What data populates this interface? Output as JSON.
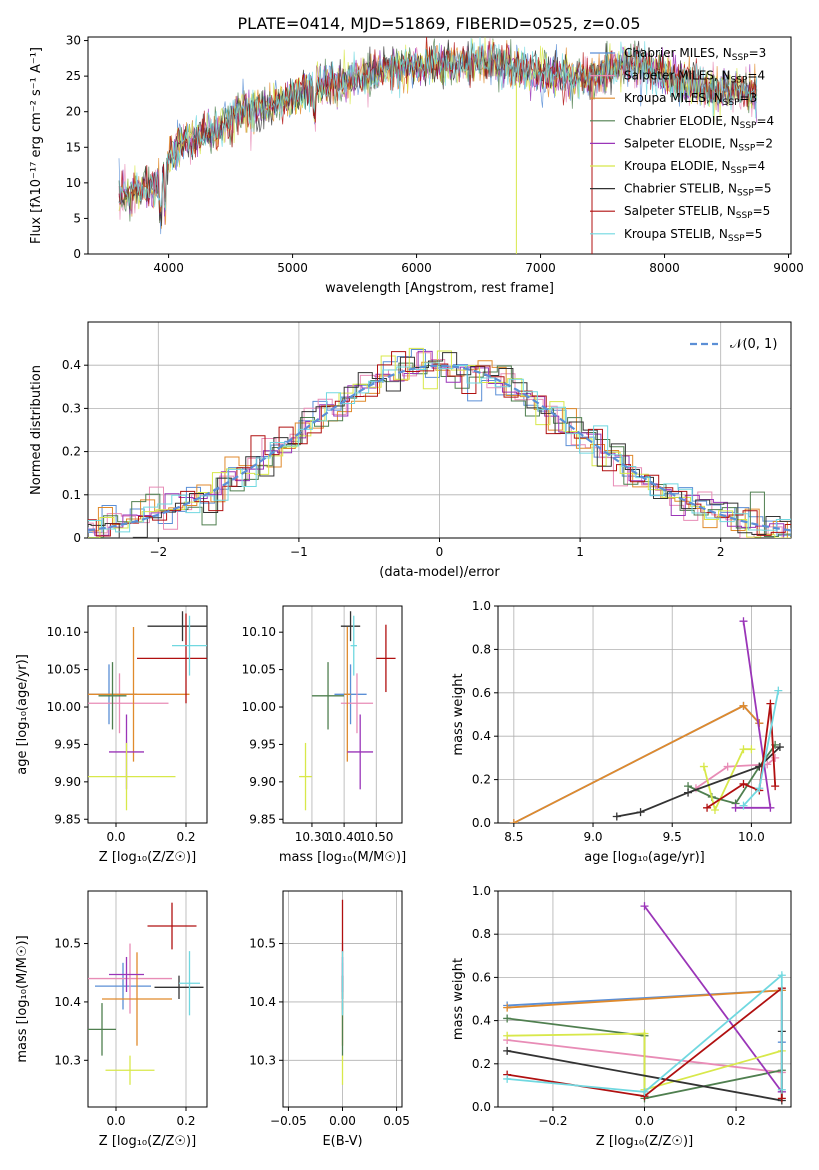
{
  "figure": {
    "title": "PLATE=0414, MJD=51869, FIBERID=0525, z=0.05"
  },
  "colors": {
    "Chabrier MILES": "#5b8fd6",
    "Salpeter MILES": "#e88cb6",
    "Kroupa MILES": "#e08a2c",
    "Chabrier ELODIE": "#4f7f4f",
    "Salpeter ELODIE": "#9a35b8",
    "Kroupa ELODIE": "#d8e84a",
    "Chabrier STELIB": "#333333",
    "Salpeter STELIB": "#b01010",
    "Kroupa STELIB": "#70d8e0"
  },
  "chart_data": [
    {
      "type": "line",
      "id": "spectrum",
      "title": "PLATE=0414, MJD=51869, FIBERID=0525, z=0.05",
      "xlabel": "wavelength [Angstrom, rest frame]",
      "ylabel": "Flux [fλ10⁻¹⁷ erg cm⁻² s⁻¹ A⁻¹]",
      "xlim": [
        3350,
        9020
      ],
      "ylim": [
        0,
        30.5
      ],
      "xticks": [
        4000,
        5000,
        6000,
        7000,
        8000,
        9000
      ],
      "yticks": [
        0,
        5,
        10,
        15,
        20,
        25,
        30
      ],
      "legend_position": "right",
      "series": [
        {
          "name": "Chabrier MILES, N$_{SSP}$=3",
          "label_pre": "Chabrier MILES, N",
          "label_sub": "SSP",
          "label_post": "=3"
        },
        {
          "name": "Salpeter MILES, N$_{SSP}$=4",
          "label_pre": "Salpeter MILES, N",
          "label_sub": "SSP",
          "label_post": "=4"
        },
        {
          "name": "Kroupa MILES, N$_{SSP}$=3",
          "label_pre": "Kroupa MILES, N",
          "label_sub": "SSP",
          "label_post": "=3"
        },
        {
          "name": "Chabrier ELODIE, N$_{SSP}$=4",
          "label_pre": "Chabrier ELODIE, N",
          "label_sub": "SSP",
          "label_post": "=4"
        },
        {
          "name": "Salpeter ELODIE, N$_{SSP}$=2",
          "label_pre": "Salpeter ELODIE, N",
          "label_sub": "SSP",
          "label_post": "=2"
        },
        {
          "name": "Kroupa ELODIE, N$_{SSP}$=4",
          "label_pre": "Kroupa ELODIE, N",
          "label_sub": "SSP",
          "label_post": "=4"
        },
        {
          "name": "Chabrier STELIB, N$_{SSP}$=5",
          "label_pre": "Chabrier STELIB, N",
          "label_sub": "SSP",
          "label_post": "=5"
        },
        {
          "name": "Salpeter STELIB, N$_{SSP}$=5",
          "label_pre": "Salpeter STELIB, N",
          "label_sub": "SSP",
          "label_post": "=5"
        },
        {
          "name": "Kroupa STELIB, N$_{SSP}$=5",
          "label_pre": "Kroupa STELIB, N",
          "label_sub": "SSP",
          "label_post": "=5"
        }
      ],
      "continuum": {
        "x": [
          3600,
          3700,
          3800,
          3900,
          4000,
          4100,
          4200,
          4300,
          4400,
          4500,
          4600,
          4800,
          5000,
          5200,
          5400,
          5600,
          5800,
          6000,
          6200,
          6400,
          6600,
          6800,
          7000,
          7200,
          7400,
          7600,
          7800,
          8000,
          8200,
          8400,
          8600,
          8700
        ],
        "y": [
          8.0,
          8.5,
          9.5,
          9.0,
          13.0,
          15.5,
          16.0,
          17.0,
          17.5,
          19.0,
          20.0,
          20.5,
          22.0,
          23.5,
          24.0,
          25.0,
          26.0,
          26.5,
          26.8,
          27.0,
          27.2,
          26.0,
          25.5,
          25.0,
          24.5,
          26.5,
          26.8,
          25.0,
          24.0,
          23.0,
          23.0,
          22.5
        ]
      }
    },
    {
      "type": "bar",
      "id": "residuals",
      "xlabel": "(data-model)/error",
      "ylabel": "Normed distribution",
      "xlim": [
        -2.5,
        2.5
      ],
      "ylim": [
        0,
        0.5
      ],
      "xticks": [
        -2,
        -1,
        0,
        1,
        2
      ],
      "yticks": [
        0.0,
        0.1,
        0.2,
        0.3,
        0.4
      ],
      "reference": {
        "name": "𝒩(0, 1)",
        "mean": 0,
        "sigma": 1
      }
    },
    {
      "type": "scatter",
      "id": "age-metallicity",
      "xlabel": "Z [log₁₀(Z/Z☉)]",
      "ylabel": "age  [log₁₀(age/yr)]",
      "xlim": [
        -0.08,
        0.26
      ],
      "ylim": [
        9.845,
        10.135
      ],
      "xticks": [
        0.0,
        0.2
      ],
      "yticks": [
        9.85,
        9.9,
        9.95,
        10.0,
        10.05,
        10.1
      ],
      "points": [
        {
          "x": -0.02,
          "y": 10.017,
          "xerr": 0.08,
          "yerr": 0.04
        },
        {
          "x": 0.01,
          "y": 10.005,
          "xerr": 0.14,
          "yerr": 0.04
        },
        {
          "x": 0.05,
          "y": 10.017,
          "xerr": 0.16,
          "yerr": 0.09
        },
        {
          "x": -0.01,
          "y": 10.015,
          "xerr": 0.04,
          "yerr": 0.045
        },
        {
          "x": 0.03,
          "y": 9.94,
          "xerr": 0.05,
          "yerr": 0.05
        },
        {
          "x": 0.03,
          "y": 9.907,
          "xerr": 0.14,
          "yerr": 0.045
        },
        {
          "x": 0.19,
          "y": 10.108,
          "xerr": 0.1,
          "yerr": 0.02
        },
        {
          "x": 0.2,
          "y": 10.065,
          "xerr": 0.14,
          "yerr": 0.06
        },
        {
          "x": 0.21,
          "y": 10.082,
          "xerr": 0.05,
          "yerr": 0.04
        }
      ]
    },
    {
      "type": "scatter",
      "id": "age-mass",
      "xlabel": "mass [log₁₀(M/M☉)]",
      "ylabel": "",
      "xlim": [
        10.21,
        10.58
      ],
      "ylim": [
        9.845,
        10.135
      ],
      "xticks": [
        10.3,
        10.4,
        10.5
      ],
      "yticks": [
        9.85,
        9.9,
        9.95,
        10.0,
        10.05,
        10.1
      ],
      "points": [
        {
          "x": 10.42,
          "y": 10.017,
          "xerr": 0.05,
          "yerr": 0.04
        },
        {
          "x": 10.44,
          "y": 10.005,
          "xerr": 0.05,
          "yerr": 0.04
        },
        {
          "x": 10.41,
          "y": 10.017,
          "xerr": 0.01,
          "yerr": 0.09
        },
        {
          "x": 10.35,
          "y": 10.015,
          "xerr": 0.05,
          "yerr": 0.045
        },
        {
          "x": 10.45,
          "y": 9.94,
          "xerr": 0.04,
          "yerr": 0.05
        },
        {
          "x": 10.28,
          "y": 9.907,
          "xerr": 0.02,
          "yerr": 0.045
        },
        {
          "x": 10.42,
          "y": 10.108,
          "xerr": 0.03,
          "yerr": 0.02
        },
        {
          "x": 10.53,
          "y": 10.065,
          "xerr": 0.03,
          "yerr": 0.045
        },
        {
          "x": 10.43,
          "y": 10.082,
          "xerr": 0.01,
          "yerr": 0.04
        }
      ]
    },
    {
      "type": "line",
      "id": "mass-weight-age",
      "xlabel": "age  [log₁₀(age/yr)]",
      "ylabel": "mass weight",
      "xlim": [
        8.4,
        10.25
      ],
      "ylim": [
        0.0,
        1.0
      ],
      "xticks": [
        8.5,
        9.0,
        9.5,
        10.0
      ],
      "yticks": [
        0.0,
        0.2,
        0.4,
        0.6,
        0.8,
        1.0
      ],
      "series": [
        {
          "x": [
            8.5,
            9.95,
            10.05
          ],
          "y": [
            0.0,
            0.54,
            0.46
          ]
        },
        {
          "x": [
            9.65,
            9.85,
            10.1,
            10.15
          ],
          "y": [
            0.16,
            0.26,
            0.27,
            0.3
          ]
        },
        {
          "x": [
            8.5,
            9.95,
            10.05
          ],
          "y": [
            0.0,
            0.54,
            0.46
          ]
        },
        {
          "x": [
            9.6,
            9.75,
            9.9,
            10.05,
            10.15
          ],
          "y": [
            0.17,
            0.12,
            0.09,
            0.26,
            0.36
          ]
        },
        {
          "x": [
            9.95,
            10.12,
            9.9
          ],
          "y": [
            0.93,
            0.07,
            0.07
          ]
        },
        {
          "x": [
            9.7,
            9.77,
            9.95,
            10.0
          ],
          "y": [
            0.26,
            0.06,
            0.34,
            0.34
          ]
        },
        {
          "x": [
            9.15,
            9.3,
            9.6,
            10.05,
            10.18
          ],
          "y": [
            0.03,
            0.05,
            0.14,
            0.26,
            0.35
          ]
        },
        {
          "x": [
            9.72,
            9.95,
            10.05,
            10.12,
            10.15
          ],
          "y": [
            0.07,
            0.18,
            0.15,
            0.55,
            0.17
          ]
        },
        {
          "x": [
            9.95,
            10.05,
            10.17
          ],
          "y": [
            0.08,
            0.16,
            0.61
          ]
        }
      ]
    },
    {
      "type": "scatter",
      "id": "mass-metallicity",
      "xlabel": "Z [log₁₀(Z/Z☉)]",
      "ylabel": "mass [log₁₀(M/M☉)]",
      "xlim": [
        -0.08,
        0.26
      ],
      "ylim": [
        10.22,
        10.59
      ],
      "xticks": [
        0.0,
        0.2
      ],
      "yticks": [
        10.3,
        10.4,
        10.5
      ],
      "points": [
        {
          "x": 0.02,
          "y": 10.427,
          "xerr": 0.08,
          "yerr": 0.04
        },
        {
          "x": 0.04,
          "y": 10.44,
          "xerr": 0.12,
          "yerr": 0.06
        },
        {
          "x": 0.06,
          "y": 10.405,
          "xerr": 0.1,
          "yerr": 0.08
        },
        {
          "x": -0.04,
          "y": 10.353,
          "xerr": 0.04,
          "yerr": 0.045
        },
        {
          "x": 0.03,
          "y": 10.447,
          "xerr": 0.05,
          "yerr": 0.03
        },
        {
          "x": 0.04,
          "y": 10.283,
          "xerr": 0.07,
          "yerr": 0.025
        },
        {
          "x": 0.18,
          "y": 10.425,
          "xerr": 0.07,
          "yerr": 0.02
        },
        {
          "x": 0.16,
          "y": 10.53,
          "xerr": 0.07,
          "yerr": 0.04
        },
        {
          "x": 0.21,
          "y": 10.432,
          "xerr": 0.03,
          "yerr": 0.055
        }
      ]
    },
    {
      "type": "scatter",
      "id": "mass-ebv",
      "xlabel": "E(B-V)",
      "ylabel": "",
      "xlim": [
        -0.055,
        0.055
      ],
      "ylim": [
        10.22,
        10.59
      ],
      "xticks": [
        -0.05,
        0.0,
        0.05
      ],
      "yticks": [
        10.3,
        10.4,
        10.5
      ],
      "points": [
        {
          "x": 0.0,
          "y": 10.427,
          "yerr": 0.04
        },
        {
          "x": 0.0,
          "y": 10.44,
          "yerr": 0.06
        },
        {
          "x": 0.0,
          "y": 10.405,
          "yerr": 0.08
        },
        {
          "x": 0.0,
          "y": 10.353,
          "yerr": 0.045
        },
        {
          "x": 0.0,
          "y": 10.447,
          "yerr": 0.03
        },
        {
          "x": 0.0,
          "y": 10.283,
          "yerr": 0.025
        },
        {
          "x": 0.0,
          "y": 10.425,
          "yerr": 0.02
        },
        {
          "x": 0.0,
          "y": 10.53,
          "yerr": 0.045
        },
        {
          "x": 0.0,
          "y": 10.432,
          "yerr": 0.055
        }
      ]
    },
    {
      "type": "line",
      "id": "mass-weight-metallicity",
      "xlabel": "Z [log₁₀(Z/Z☉)]",
      "ylabel": "mass weight",
      "xlim": [
        -0.32,
        0.32
      ],
      "ylim": [
        0.0,
        1.0
      ],
      "xticks": [
        -0.2,
        0.0,
        0.2
      ],
      "yticks": [
        0.0,
        0.2,
        0.4,
        0.6,
        0.8,
        1.0
      ],
      "series": [
        {
          "x": [
            -0.3,
            0.3,
            0.3
          ],
          "y": [
            0.47,
            0.54,
            0.3
          ]
        },
        {
          "x": [
            -0.3,
            0.3
          ],
          "y": [
            0.31,
            0.16
          ]
        },
        {
          "x": [
            -0.3,
            0.3
          ],
          "y": [
            0.46,
            0.54
          ]
        },
        {
          "x": [
            -0.3,
            0.0,
            0.0,
            0.3
          ],
          "y": [
            0.41,
            0.33,
            0.04,
            0.17
          ]
        },
        {
          "x": [
            0.0,
            0.3,
            0.3
          ],
          "y": [
            0.93,
            0.07,
            0.07
          ]
        },
        {
          "x": [
            -0.3,
            0.0,
            0.0,
            0.3
          ],
          "y": [
            0.33,
            0.34,
            0.08,
            0.26
          ]
        },
        {
          "x": [
            -0.3,
            0.3,
            0.3
          ],
          "y": [
            0.26,
            0.03,
            0.35
          ]
        },
        {
          "x": [
            -0.3,
            0.0,
            0.3,
            0.3
          ],
          "y": [
            0.15,
            0.05,
            0.55,
            0.04
          ]
        },
        {
          "x": [
            -0.3,
            0.0,
            0.3,
            0.3
          ],
          "y": [
            0.13,
            0.07,
            0.61,
            0.08
          ]
        }
      ]
    }
  ]
}
